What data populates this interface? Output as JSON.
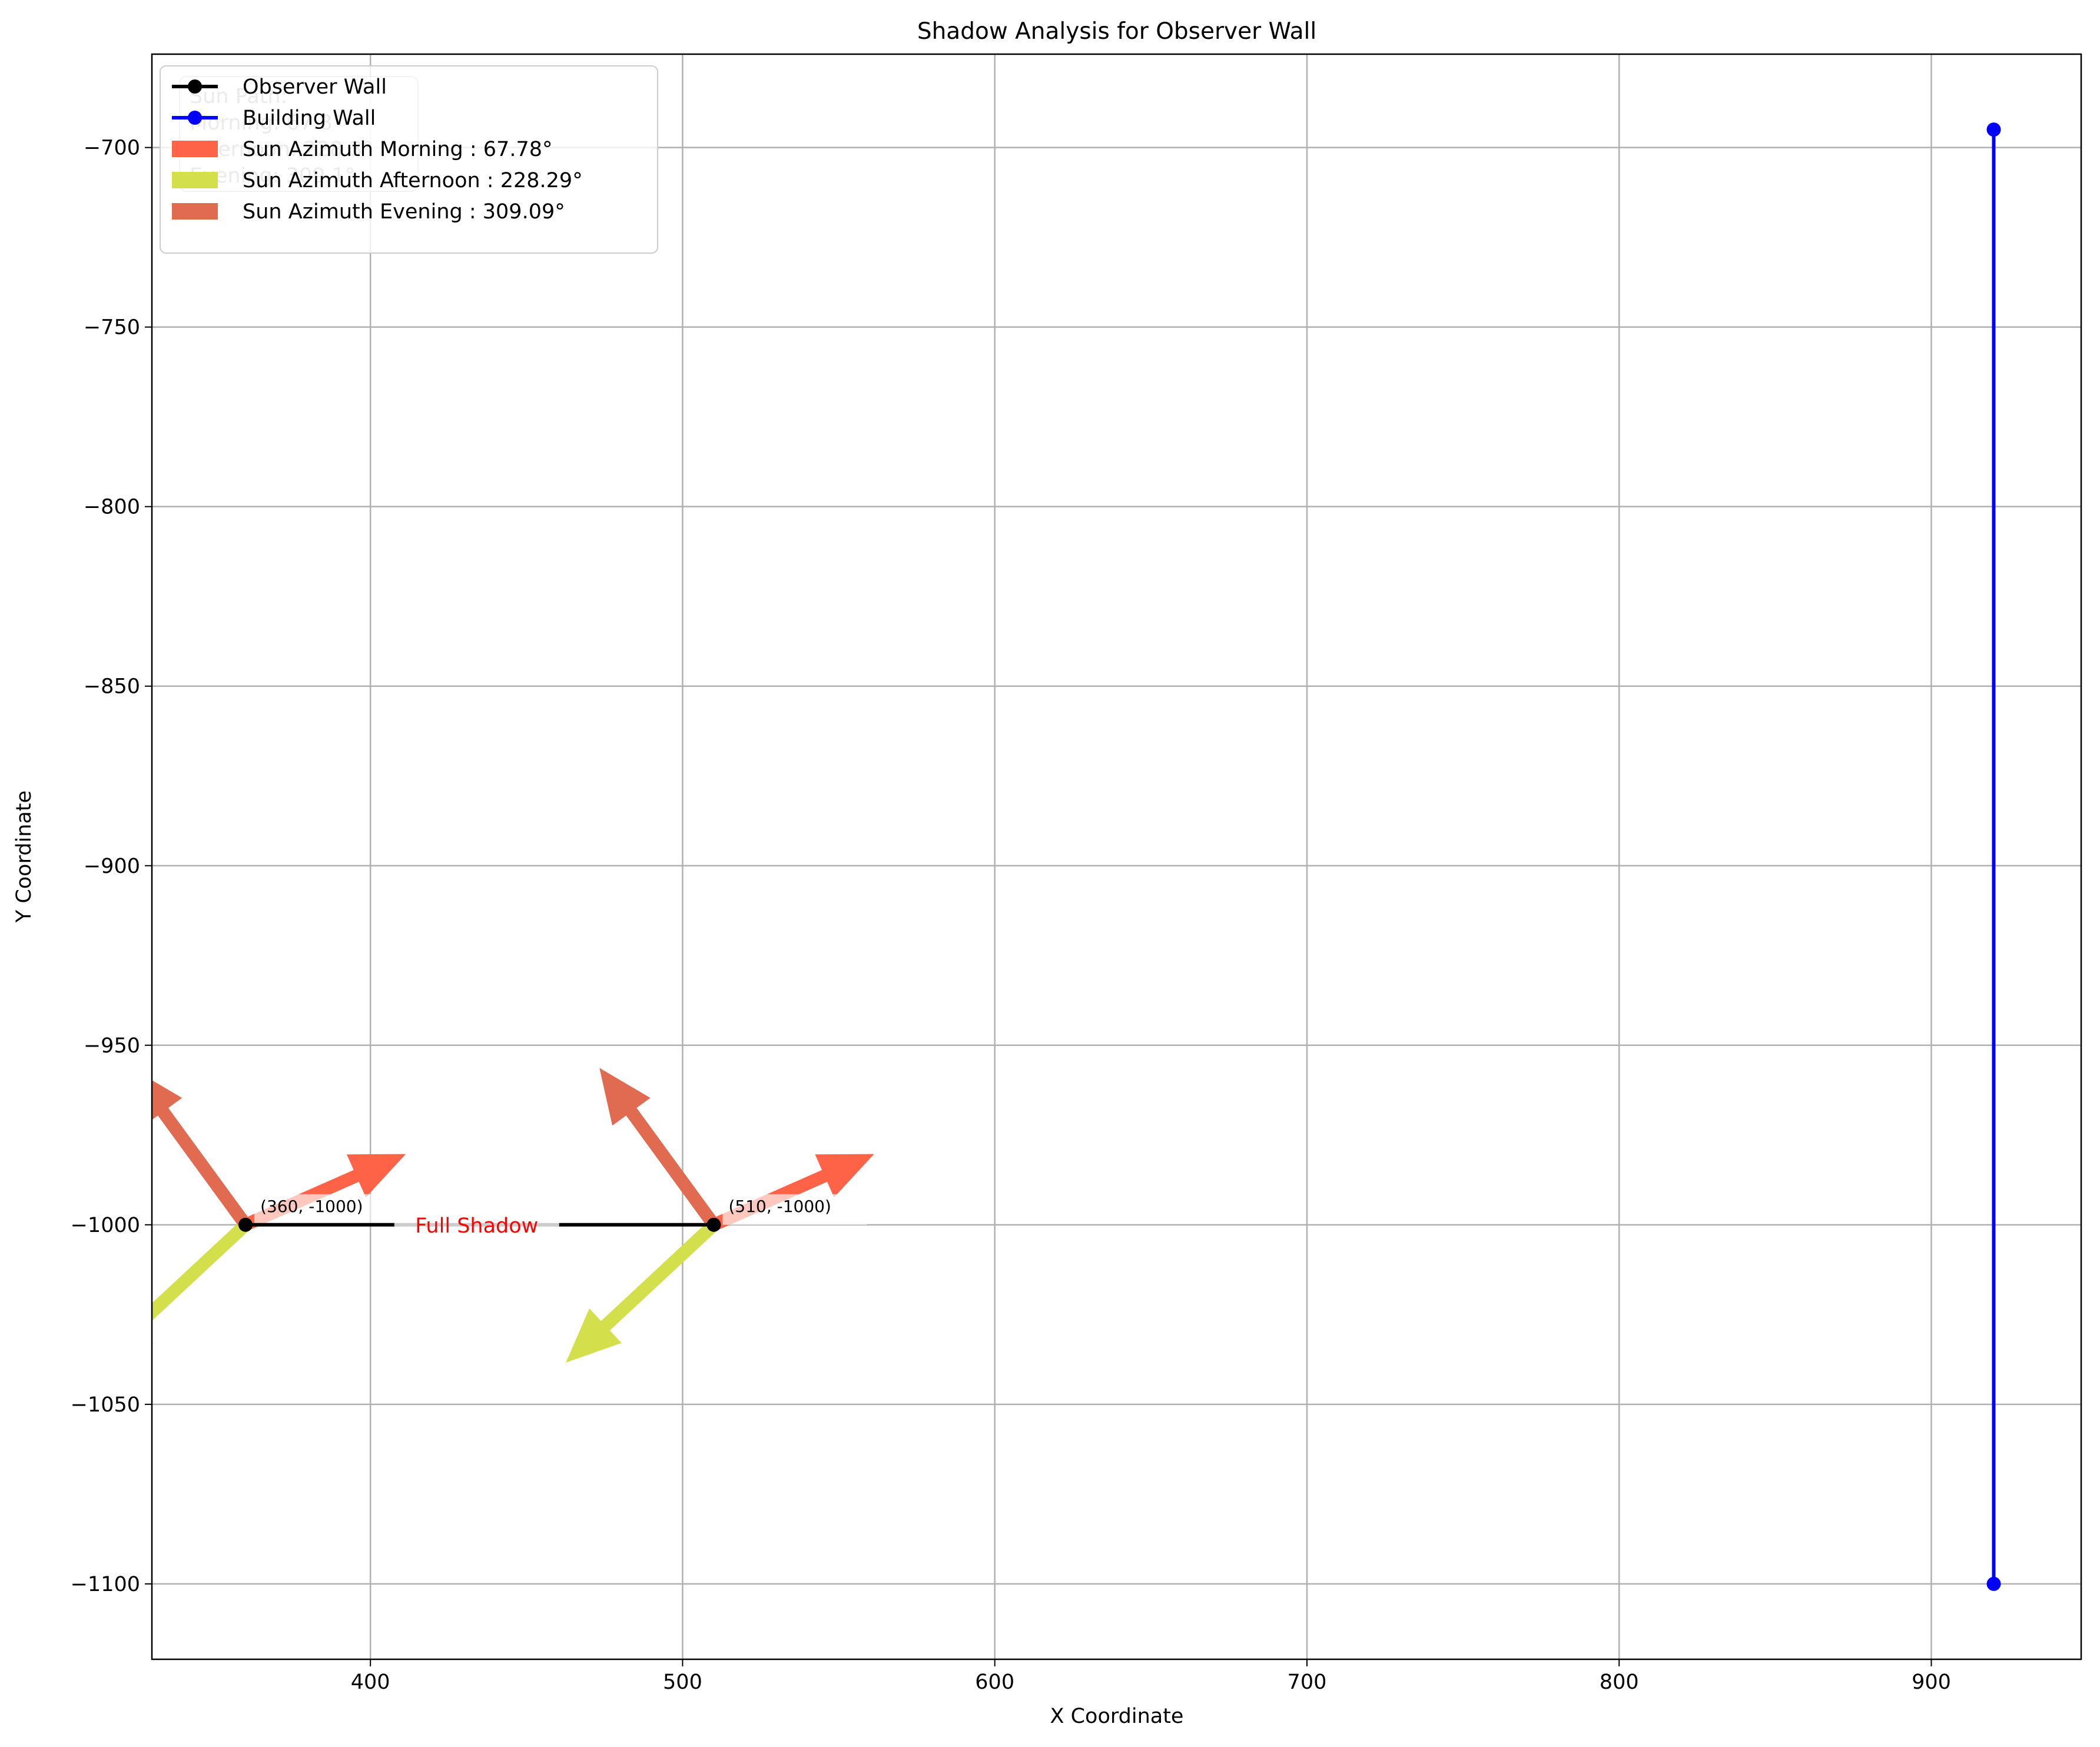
{
  "chart_data": {
    "type": "line",
    "title": "Shadow Analysis for Observer Wall",
    "xlabel": "X Coordinate",
    "ylabel": "Y Coordinate",
    "xlim": [
      330,
      948
    ],
    "ylim": [
      -1121,
      -674
    ],
    "x_ticks": [
      400,
      500,
      600,
      700,
      800,
      900
    ],
    "y_ticks": [
      -700,
      -750,
      -800,
      -850,
      -900,
      -950,
      -1000,
      -1050,
      -1100
    ],
    "grid": true,
    "legend_position": "top-left",
    "series": [
      {
        "name": "Observer Wall",
        "color": "#000000",
        "points": [
          [
            360,
            -1000
          ],
          [
            510,
            -1000
          ]
        ]
      },
      {
        "name": "Building Wall",
        "color": "#0000ff",
        "points": [
          [
            920,
            -695
          ],
          [
            920,
            -1100
          ]
        ]
      }
    ],
    "sun_directions": [
      {
        "name": "Sun Azimuth Morning : 67.78°",
        "azimuth": 67.78,
        "color": "#ff6347"
      },
      {
        "name": "Sun Azimuth Afternoon : 228.29°",
        "azimuth": 228.29,
        "color": "#d4e04b"
      },
      {
        "name": "Sun Azimuth Evening : 309.09°",
        "azimuth": 309.09,
        "color": "#e06b50"
      }
    ],
    "point_labels": [
      {
        "text": "(360, -1000)",
        "x": 360,
        "y": -1000
      },
      {
        "text": "(510, -1000)",
        "x": 510,
        "y": -1000
      }
    ],
    "annotations": [
      {
        "text": "Full Shadow",
        "color": "#ff0000"
      }
    ],
    "info_box": {
      "lines": [
        "Sun Path:",
        "Morning: 67.8°",
        "Afternoon: 228.3°",
        "Evening: 309.1°"
      ]
    }
  }
}
